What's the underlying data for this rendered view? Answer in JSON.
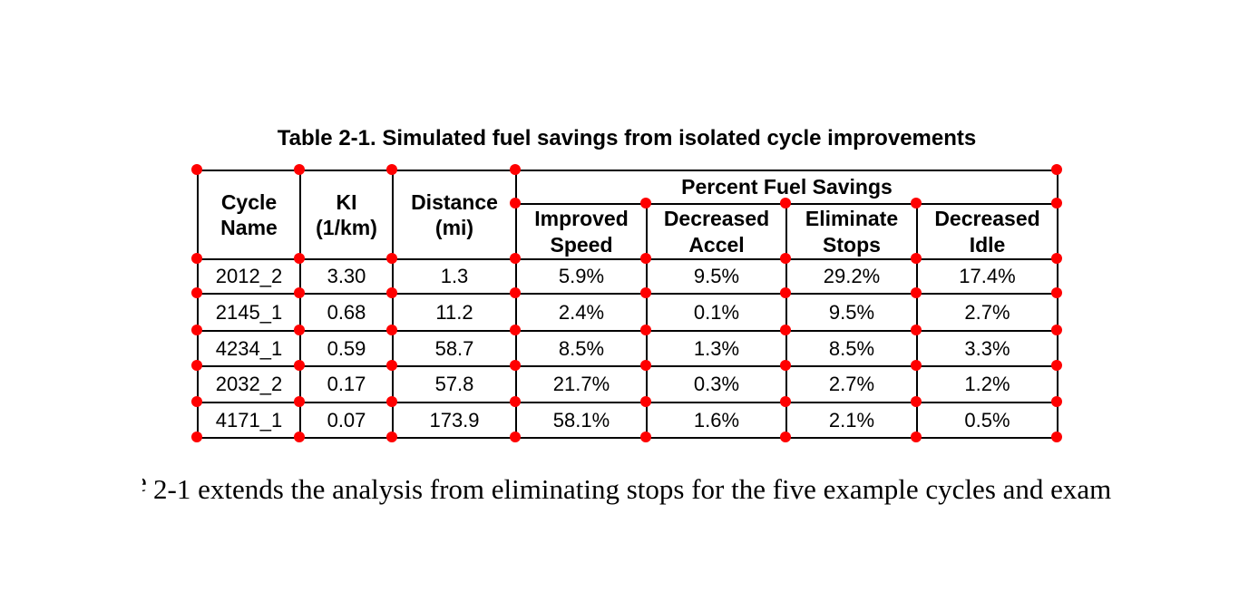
{
  "document": {
    "table_caption": "Table 2-1. Simulated fuel savings from isolated cycle improvements",
    "body_text": "2-1 extends the analysis from eliminating stops for the five example cycles and exam",
    "body_text_clipped_char": "e"
  },
  "table": {
    "column_headers": [
      "Cycle Name",
      "KI (1/km)",
      "Distance (mi)"
    ],
    "span_header": "Percent Fuel Savings",
    "sub_headers": [
      "Improved Speed",
      "Decreased Accel",
      "Eliminate Stops",
      "Decreased Idle"
    ],
    "rows": [
      [
        "2012_2",
        "3.30",
        "1.3",
        "5.9%",
        "9.5%",
        "29.2%",
        "17.4%"
      ],
      [
        "2145_1",
        "0.68",
        "11.2",
        "2.4%",
        "0.1%",
        "9.5%",
        "2.7%"
      ],
      [
        "4234_1",
        "0.59",
        "58.7",
        "8.5%",
        "1.3%",
        "8.5%",
        "3.3%"
      ],
      [
        "2032_2",
        "0.17",
        "57.8",
        "21.7%",
        "0.3%",
        "2.7%",
        "1.2%"
      ],
      [
        "4171_1",
        "0.07",
        "173.9",
        "58.1%",
        "1.6%",
        "2.1%",
        "0.5%"
      ]
    ]
  },
  "annotation": {
    "dot_color": "#ff0000"
  }
}
